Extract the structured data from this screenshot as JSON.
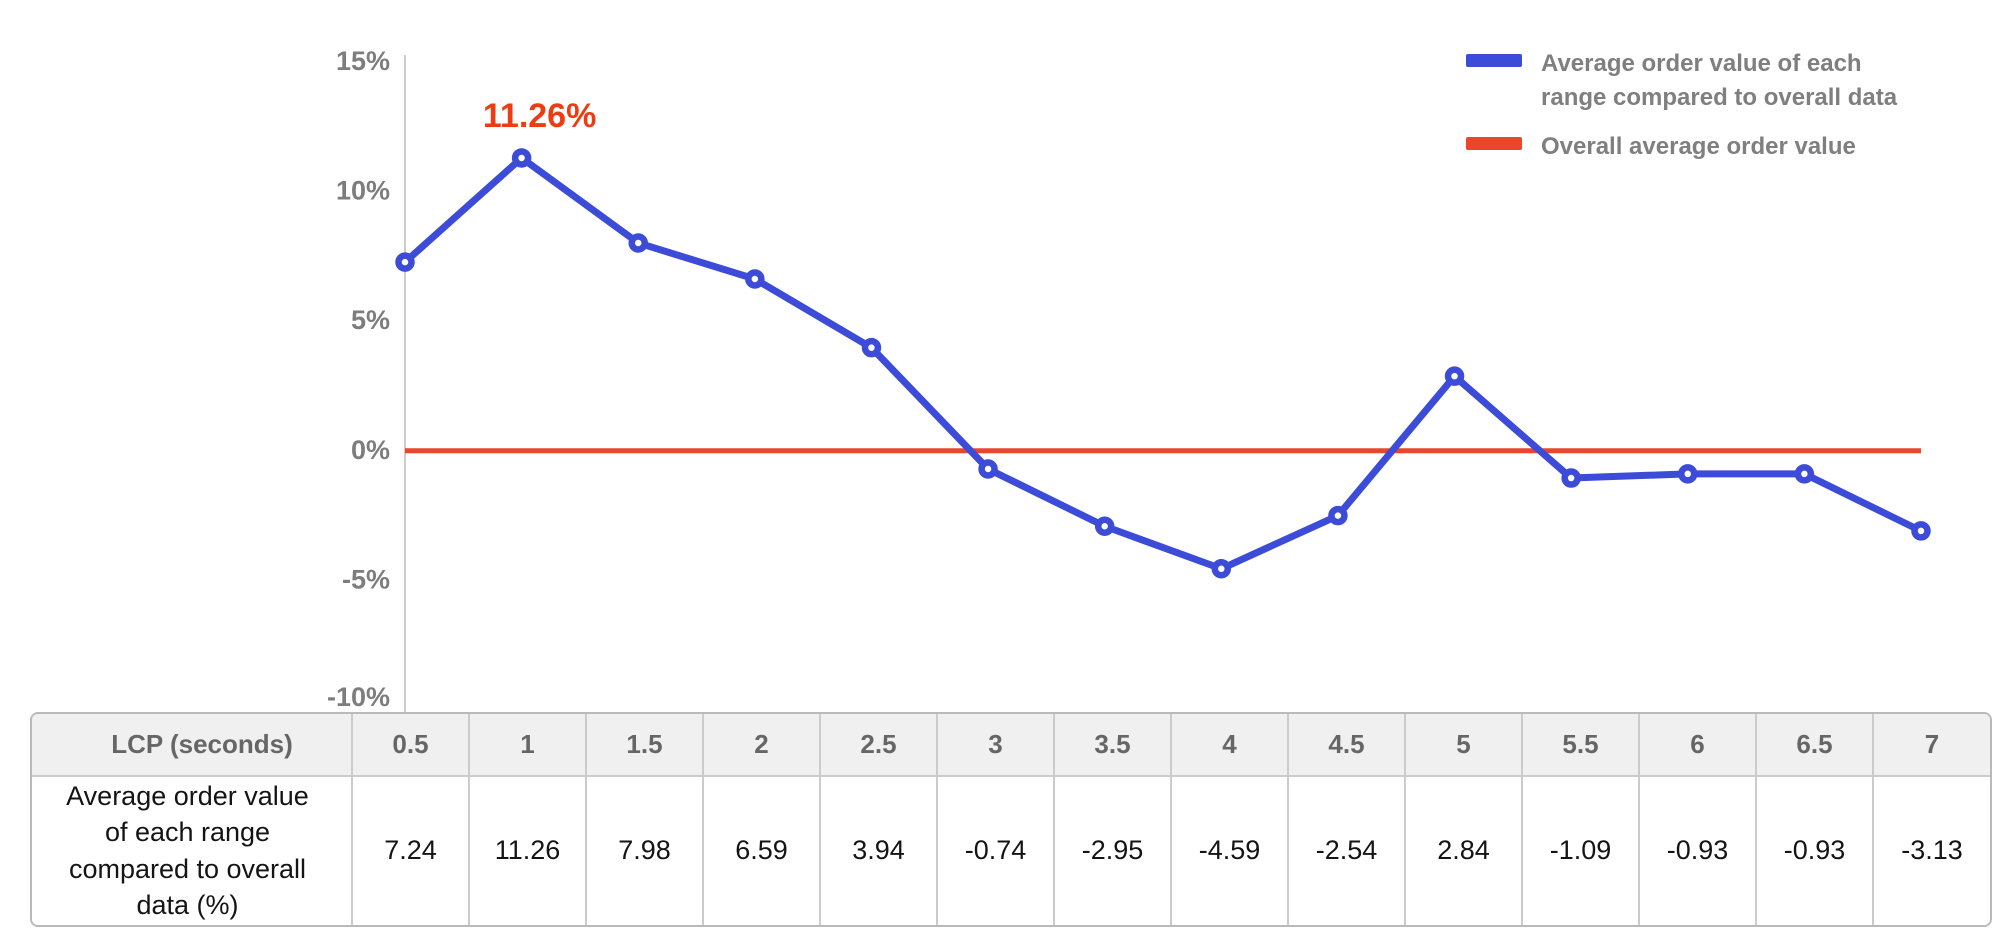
{
  "colors": {
    "series_blue": "#3c4bd8",
    "overall_red": "#e8472a",
    "annotation_red": "#ee3c12",
    "axis_line": "#cccccc",
    "tick_text": "#7d7d7d",
    "legend_text": "#7f7f7f",
    "table_border": "#cbcbcb",
    "table_header_bg": "#f0f0f0",
    "table_value_text": "#141414"
  },
  "legend": [
    {
      "label": "Average order value of each range compared to overall data",
      "color": "#3c4bd8"
    },
    {
      "label": "Overall average order value",
      "color": "#e8472a"
    }
  ],
  "chart_data": {
    "type": "line",
    "x": [
      0.5,
      1,
      1.5,
      2,
      2.5,
      3,
      3.5,
      4,
      4.5,
      5,
      5.5,
      6,
      6.5,
      7
    ],
    "series": [
      {
        "name": "Average order value of each range compared to overall data",
        "values": [
          7.24,
          11.26,
          7.98,
          6.59,
          3.94,
          -0.74,
          -2.95,
          -4.59,
          -2.54,
          2.84,
          -1.09,
          -0.93,
          -0.93,
          -3.13
        ],
        "color": "#3c4bd8"
      },
      {
        "name": "Overall average order value",
        "constant": 0,
        "color": "#e8472a"
      }
    ],
    "ylim": [
      -10,
      15
    ],
    "yticks": [
      {
        "value": 15,
        "label": "15%"
      },
      {
        "value": 10,
        "label": "10%"
      },
      {
        "value": 5,
        "label": "5%"
      },
      {
        "value": 0,
        "label": "0%"
      },
      {
        "value": -5,
        "label": "-5%"
      },
      {
        "value": -10,
        "label": "-10%"
      }
    ],
    "annotation": {
      "text": "11.26%",
      "x": 1,
      "y": 11.26
    },
    "grid": false,
    "legend_position": "top-right",
    "xlabel": "LCP (seconds)",
    "ylabel": ""
  },
  "table": {
    "header_label": "LCP (seconds)",
    "row_label": "Average order value of each range compared to overall data (%)",
    "columns": [
      "0.5",
      "1",
      "1.5",
      "2",
      "2.5",
      "3",
      "3.5",
      "4",
      "4.5",
      "5",
      "5.5",
      "6",
      "6.5",
      "7"
    ],
    "values": [
      "7.24",
      "11.26",
      "7.98",
      "6.59",
      "3.94",
      "-0.74",
      "-2.95",
      "-4.59",
      "-2.54",
      "2.84",
      "-1.09",
      "-0.93",
      "-0.93",
      "-3.13"
    ]
  }
}
